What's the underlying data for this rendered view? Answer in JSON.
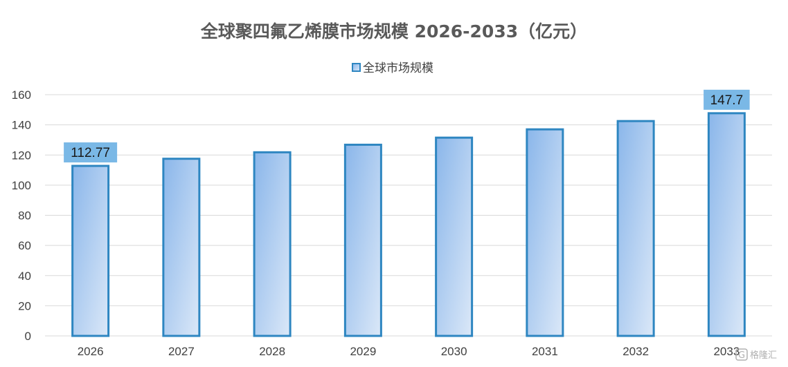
{
  "chart_data": {
    "type": "bar",
    "title": "全球聚四氟乙烯膜市场规模 2026-2033（亿元）",
    "categories": [
      "2026",
      "2027",
      "2028",
      "2029",
      "2030",
      "2031",
      "2032",
      "2033"
    ],
    "series": [
      {
        "name": "全球市场规模",
        "values": [
          112.77,
          117.5,
          121.8,
          126.8,
          131.5,
          137.0,
          142.5,
          147.7
        ]
      }
    ],
    "data_labels": [
      {
        "category": "2026",
        "text": "112.77"
      },
      {
        "category": "2033",
        "text": "147.7"
      }
    ],
    "ylim": [
      0,
      160
    ],
    "yticks": [
      0,
      20,
      40,
      60,
      80,
      100,
      120,
      140,
      160
    ],
    "grid": true,
    "legend_position": "top-center",
    "colors": {
      "bar_border": "#2e86c1",
      "bar_fill_dark": "#8ab6ea",
      "bar_fill_light": "#dbe8f8",
      "label_bg": "#7ab8e6",
      "grid": "#d9d9d9"
    }
  },
  "watermark": {
    "text": "格隆汇",
    "logo_text": "G"
  }
}
